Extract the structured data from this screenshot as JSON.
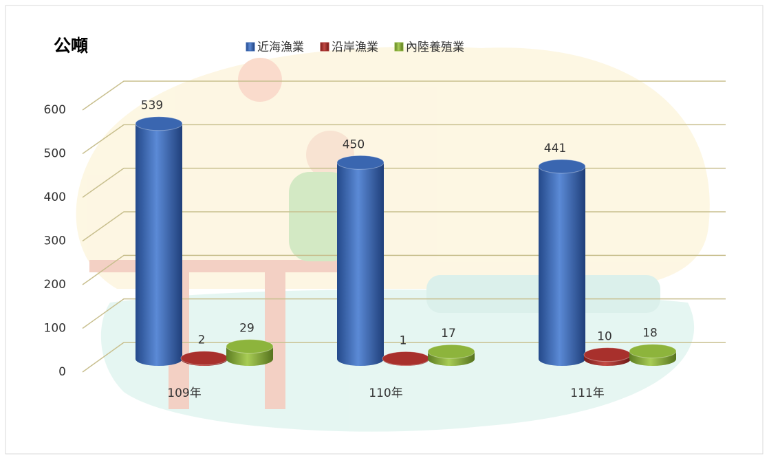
{
  "chart_data": {
    "type": "bar",
    "title": "公噸",
    "categories": [
      "109年",
      "110年",
      "111年"
    ],
    "series": [
      {
        "name": "近海漁業",
        "color": "#3a66b0",
        "values": [
          539,
          450,
          441
        ]
      },
      {
        "name": "沿岸漁業",
        "color": "#a8302c",
        "values": [
          2,
          1,
          10
        ]
      },
      {
        "name": "內陸養殖業",
        "color": "#8db43c",
        "values": [
          29,
          17,
          18
        ]
      }
    ],
    "ylim": [
      0,
      600
    ],
    "yticks": [
      0,
      100,
      200,
      300,
      400,
      500,
      600
    ],
    "grid": true,
    "legend": "top"
  }
}
